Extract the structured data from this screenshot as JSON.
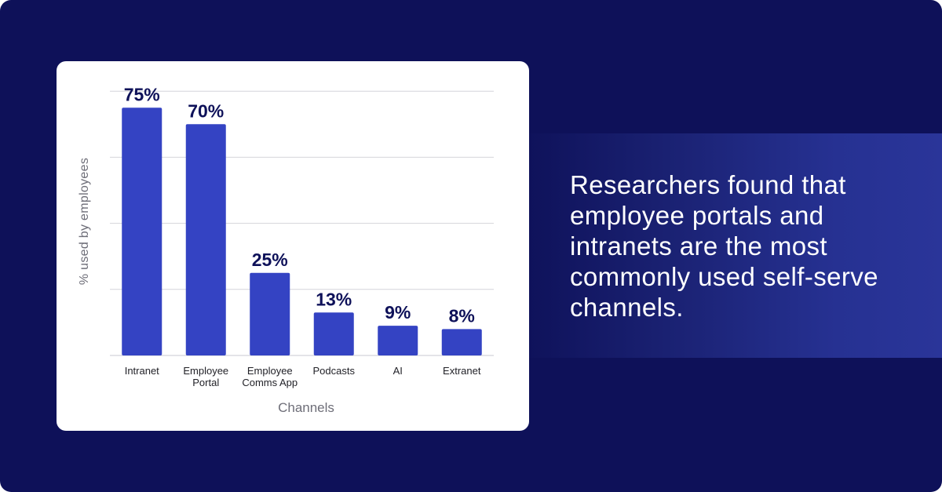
{
  "headline": "Researchers found that employee portals and intranets are the most commonly used self-serve channels.",
  "colors": {
    "background": "#0e1159",
    "bar": "#3443c3",
    "value_text": "#0e1159",
    "card": "#ffffff"
  },
  "chart_data": {
    "type": "bar",
    "categories": [
      [
        "Intranet"
      ],
      [
        "Employee",
        "Portal"
      ],
      [
        "Employee",
        "Comms App"
      ],
      [
        "Podcasts"
      ],
      [
        "AI"
      ],
      [
        "Extranet"
      ]
    ],
    "values": [
      75,
      70,
      25,
      13,
      9,
      8
    ],
    "value_labels": [
      "75%",
      "70%",
      "25%",
      "13%",
      "9%",
      "8%"
    ],
    "xlabel": "Channels",
    "ylabel": "% used by employees",
    "ylim": [
      0,
      80
    ],
    "grid": true
  }
}
